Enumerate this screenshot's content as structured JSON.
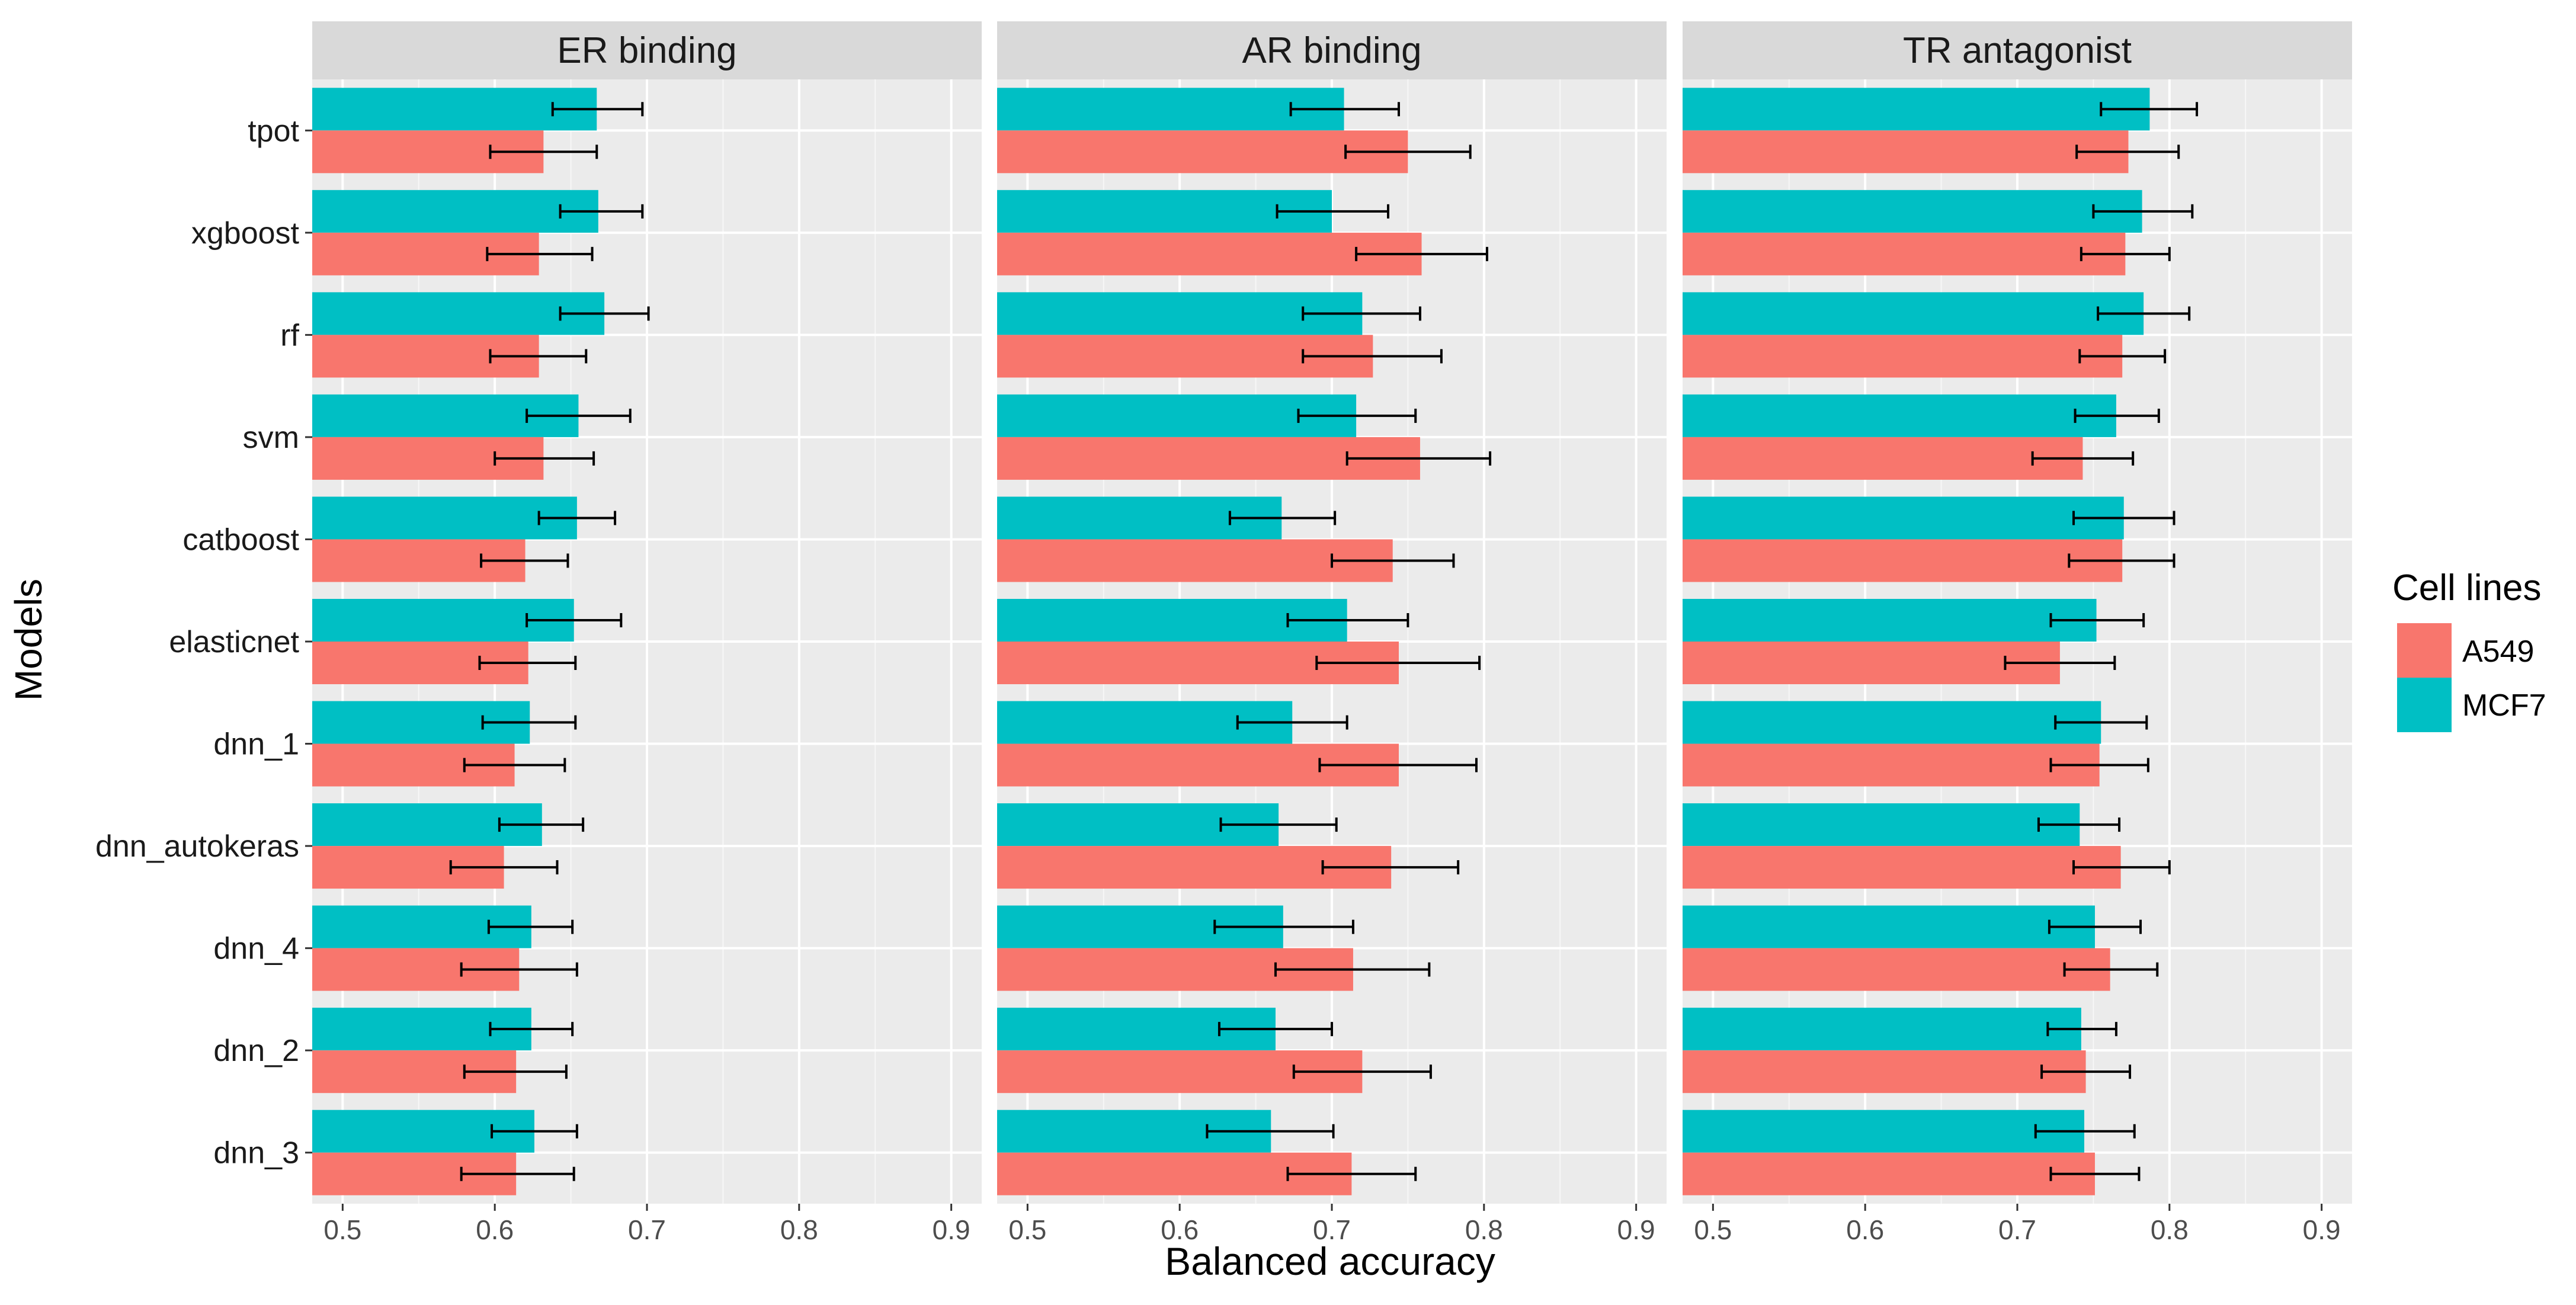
{
  "chart_data": {
    "type": "bar",
    "orientation": "horizontal",
    "ylabel": "Models",
    "xlabel": "Balanced accuracy",
    "xlim": [
      0.48,
      0.92
    ],
    "xticks": [
      0.5,
      0.6,
      0.7,
      0.8,
      0.9
    ],
    "xtick_labels": [
      "0.5",
      "0.6",
      "0.7",
      "0.8",
      "0.9"
    ],
    "grid": true,
    "legend": {
      "title": "Cell lines",
      "placement": "right",
      "entries": [
        {
          "label": "A549",
          "color": "#F8766D"
        },
        {
          "label": "MCF7",
          "color": "#00BFC4"
        }
      ]
    },
    "categories": [
      "tpot",
      "xgboost",
      "rf",
      "svm",
      "catboost",
      "elasticnet",
      "dnn_1",
      "dnn_autokeras",
      "dnn_4",
      "dnn_2",
      "dnn_3"
    ],
    "panels": [
      {
        "title": "ER binding",
        "series": [
          {
            "name": "MCF7",
            "color": "#00BFC4",
            "values": [
              0.667,
              0.668,
              0.672,
              0.655,
              0.654,
              0.652,
              0.623,
              0.631,
              0.624,
              0.624,
              0.626
            ],
            "err_low": [
              0.638,
              0.643,
              0.643,
              0.621,
              0.629,
              0.621,
              0.592,
              0.603,
              0.596,
              0.597,
              0.598
            ],
            "err_high": [
              0.697,
              0.697,
              0.701,
              0.689,
              0.679,
              0.683,
              0.653,
              0.658,
              0.651,
              0.651,
              0.654
            ]
          },
          {
            "name": "A549",
            "color": "#F8766D",
            "values": [
              0.632,
              0.629,
              0.629,
              0.632,
              0.62,
              0.622,
              0.613,
              0.606,
              0.616,
              0.614,
              0.614
            ],
            "err_low": [
              0.597,
              0.595,
              0.597,
              0.6,
              0.591,
              0.59,
              0.58,
              0.571,
              0.578,
              0.58,
              0.578
            ],
            "err_high": [
              0.667,
              0.664,
              0.66,
              0.665,
              0.648,
              0.653,
              0.646,
              0.641,
              0.654,
              0.647,
              0.652
            ]
          }
        ]
      },
      {
        "title": "AR binding",
        "series": [
          {
            "name": "MCF7",
            "color": "#00BFC4",
            "values": [
              0.708,
              0.7,
              0.72,
              0.716,
              0.667,
              0.71,
              0.674,
              0.665,
              0.668,
              0.663,
              0.66
            ],
            "err_low": [
              0.673,
              0.664,
              0.681,
              0.678,
              0.633,
              0.671,
              0.638,
              0.627,
              0.623,
              0.626,
              0.618
            ],
            "err_high": [
              0.744,
              0.737,
              0.758,
              0.755,
              0.702,
              0.75,
              0.71,
              0.703,
              0.714,
              0.7,
              0.701
            ]
          },
          {
            "name": "A549",
            "color": "#F8766D",
            "values": [
              0.75,
              0.759,
              0.727,
              0.758,
              0.74,
              0.744,
              0.744,
              0.739,
              0.714,
              0.72,
              0.713
            ],
            "err_low": [
              0.709,
              0.716,
              0.681,
              0.71,
              0.7,
              0.69,
              0.692,
              0.694,
              0.663,
              0.675,
              0.671
            ],
            "err_high": [
              0.791,
              0.802,
              0.772,
              0.804,
              0.78,
              0.797,
              0.795,
              0.783,
              0.764,
              0.765,
              0.755
            ]
          }
        ]
      },
      {
        "title": "TR antagonist",
        "series": [
          {
            "name": "MCF7",
            "color": "#00BFC4",
            "values": [
              0.787,
              0.782,
              0.783,
              0.765,
              0.77,
              0.752,
              0.755,
              0.741,
              0.751,
              0.742,
              0.744
            ],
            "err_low": [
              0.755,
              0.75,
              0.753,
              0.738,
              0.737,
              0.722,
              0.725,
              0.714,
              0.721,
              0.72,
              0.712
            ],
            "err_high": [
              0.818,
              0.815,
              0.813,
              0.793,
              0.803,
              0.783,
              0.785,
              0.767,
              0.781,
              0.765,
              0.777
            ]
          },
          {
            "name": "A549",
            "color": "#F8766D",
            "values": [
              0.773,
              0.771,
              0.769,
              0.743,
              0.769,
              0.728,
              0.754,
              0.768,
              0.761,
              0.745,
              0.751
            ],
            "err_low": [
              0.739,
              0.742,
              0.741,
              0.71,
              0.734,
              0.692,
              0.722,
              0.737,
              0.731,
              0.716,
              0.722
            ],
            "err_high": [
              0.806,
              0.8,
              0.797,
              0.776,
              0.803,
              0.764,
              0.786,
              0.8,
              0.792,
              0.774,
              0.78
            ]
          }
        ]
      }
    ]
  }
}
